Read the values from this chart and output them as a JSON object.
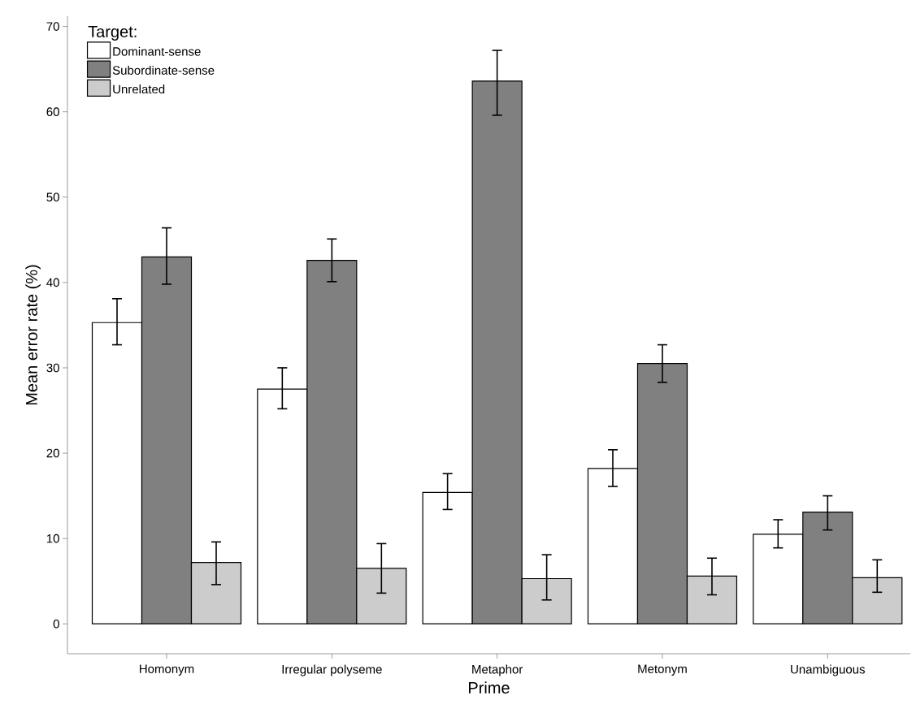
{
  "chart_data": {
    "type": "bar",
    "xlabel": "Prime",
    "ylabel": "Mean error rate (%)",
    "legend_title": "Target:",
    "legend": "top left",
    "grid": false,
    "categories": [
      "Homonym",
      "Irregular polyseme",
      "Metaphor",
      "Metonym",
      "Unambiguous"
    ],
    "series": [
      {
        "name": "Dominant-sense",
        "color": "#ffffff",
        "values": [
          35.3,
          27.5,
          15.4,
          18.2,
          10.5
        ],
        "errors": [
          [
            32.7,
            38.1
          ],
          [
            25.2,
            30.0
          ],
          [
            13.4,
            17.6
          ],
          [
            16.1,
            20.4
          ],
          [
            8.9,
            12.2
          ]
        ]
      },
      {
        "name": "Subordinate-sense",
        "color": "#808080",
        "values": [
          43.0,
          42.6,
          63.6,
          30.5,
          13.1
        ],
        "errors": [
          [
            39.8,
            46.4
          ],
          [
            40.1,
            45.1
          ],
          [
            59.6,
            67.2
          ],
          [
            28.3,
            32.7
          ],
          [
            11.0,
            15.0
          ]
        ]
      },
      {
        "name": "Unrelated",
        "color": "#cccccc",
        "values": [
          7.2,
          6.5,
          5.3,
          5.6,
          5.4
        ],
        "errors": [
          [
            4.6,
            9.6
          ],
          [
            3.6,
            9.4
          ],
          [
            2.8,
            8.1
          ],
          [
            3.4,
            7.7
          ],
          [
            3.7,
            7.5
          ]
        ]
      }
    ],
    "ylim": [
      -3.5,
      71.2
    ],
    "yticks": [
      0,
      10,
      20,
      30,
      40,
      50,
      60,
      70
    ]
  }
}
